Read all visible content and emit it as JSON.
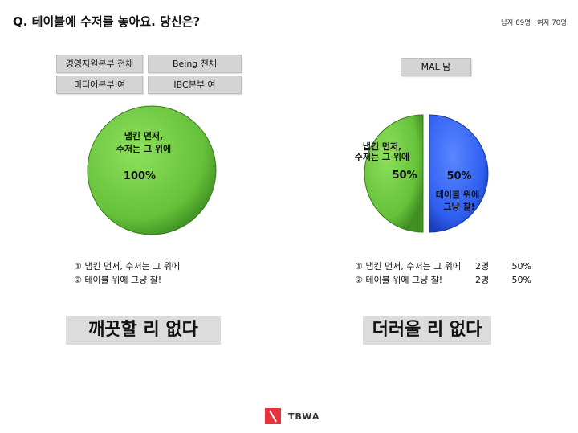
{
  "question": "Q. 테이블에 수저를 놓아요. 당신은?",
  "respondents": {
    "male": "남자 89명",
    "female": "여자 70명"
  },
  "tags_left": [
    "경영지원본부 전체",
    "Being 전체",
    "미디어본부 여",
    "IBC본부  여"
  ],
  "tag_right": "MAL 남",
  "chart_data": [
    {
      "type": "pie",
      "group": [
        "경영지원본부 전체",
        "Being 전체",
        "미디어본부 여",
        "IBC본부  여"
      ],
      "slices": [
        {
          "label_lines": [
            "냅킨 먼저,",
            "수저는 그 위에"
          ],
          "value": 100,
          "pct_text": "100%",
          "color": "#66c13a"
        }
      ],
      "legend": [
        {
          "text": "① 냅킨 먼저, 수저는 그 위에"
        },
        {
          "text": "② 테이블 위에 그냥 찰!"
        }
      ]
    },
    {
      "type": "pie",
      "group": [
        "MAL 남"
      ],
      "slices": [
        {
          "label_lines": [
            "냅킨 먼저,",
            "수저는 그 위에"
          ],
          "value": 50,
          "pct_text": "50%",
          "color": "#66c13a"
        },
        {
          "label_lines": [
            "테이블 위에",
            "그냥 찰!"
          ],
          "value": 50,
          "pct_text": "50%",
          "color": "#2f5ff0"
        }
      ],
      "legend": [
        {
          "text": "① 냅킨 먼저, 수저는 그 위에",
          "count": "2명",
          "pct": "50%"
        },
        {
          "text": "② 테이블 위에 그냥 찰!",
          "count": "2명",
          "pct": "50%"
        }
      ]
    }
  ],
  "verdicts": [
    "깨끗할 리 없다",
    "더러울 리 없다"
  ],
  "logo": "TBWA",
  "colors": {
    "green": "#66c13a",
    "blue": "#2f5ff0",
    "logo_red": "#e8313a",
    "tag_gray": "#d4d4d4"
  }
}
